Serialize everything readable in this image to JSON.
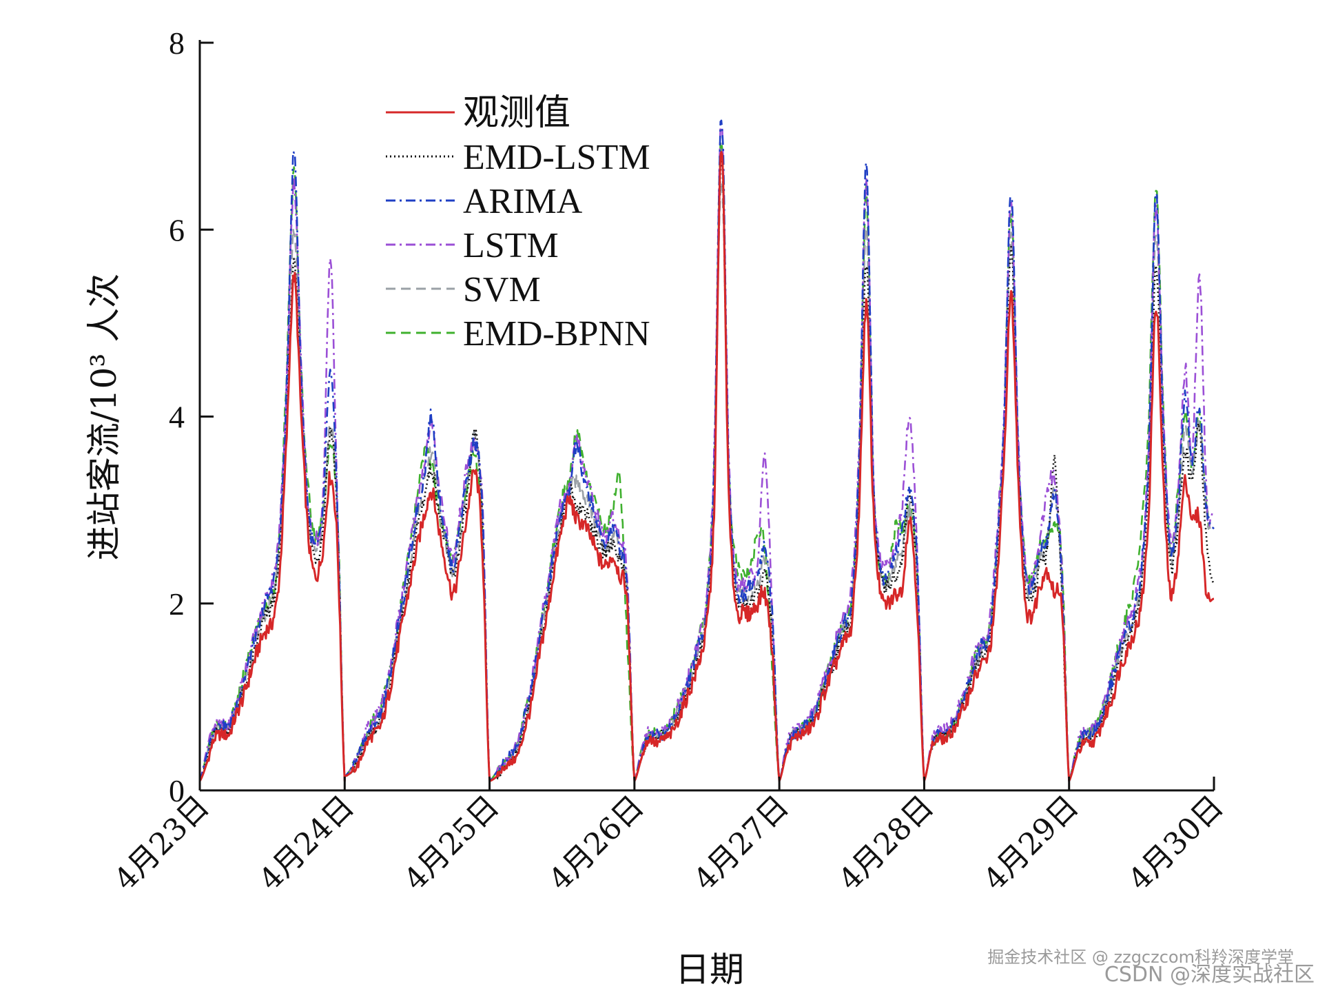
{
  "chart_data": {
    "type": "line",
    "xlabel": "日期",
    "ylabel": "进站客流/10³ 人次",
    "ylim": [
      0,
      8
    ],
    "yticks": [
      "0",
      "2",
      "4",
      "6",
      "8"
    ],
    "xlim": [
      0,
      7
    ],
    "categories": [
      "4月23日",
      "4月24日",
      "4月25日",
      "4月26日",
      "4月27日",
      "4月28日",
      "4月29日",
      "4月30日"
    ],
    "legend_position": "top-left",
    "grid": false,
    "series": [
      {
        "name": "观测值",
        "color": "#d62728",
        "dash": "solid",
        "day_profiles": [
          [
            0.1,
            0.3,
            0.55,
            0.6,
            0.6,
            0.8,
            1.0,
            1.25,
            1.5,
            1.7,
            1.8,
            2.3,
            3.8,
            5.5,
            4.0,
            2.7,
            2.3,
            2.6,
            3.35,
            2.6,
            0.1
          ],
          [
            0.15,
            0.2,
            0.3,
            0.5,
            0.6,
            0.7,
            1.0,
            1.4,
            1.8,
            2.2,
            2.6,
            2.95,
            3.2,
            2.8,
            2.4,
            2.1,
            2.5,
            3.0,
            3.4,
            2.6,
            0.1
          ],
          [
            0.1,
            0.15,
            0.25,
            0.3,
            0.4,
            0.7,
            1.0,
            1.5,
            1.9,
            2.4,
            2.8,
            3.1,
            2.9,
            2.85,
            2.7,
            2.5,
            2.4,
            2.5,
            2.3,
            2.0,
            0.1
          ],
          [
            0.1,
            0.35,
            0.55,
            0.5,
            0.55,
            0.6,
            0.75,
            0.95,
            1.15,
            1.4,
            1.8,
            3.0,
            6.9,
            3.2,
            2.0,
            1.9,
            1.9,
            2.0,
            2.1,
            1.5,
            0.1
          ],
          [
            0.1,
            0.4,
            0.55,
            0.6,
            0.65,
            0.75,
            1.0,
            1.2,
            1.4,
            1.6,
            1.8,
            3.0,
            5.2,
            3.0,
            2.1,
            2.0,
            2.1,
            2.2,
            2.9,
            2.0,
            0.1
          ],
          [
            0.1,
            0.45,
            0.55,
            0.55,
            0.65,
            0.8,
            1.0,
            1.2,
            1.35,
            1.5,
            2.2,
            3.5,
            5.3,
            3.3,
            2.0,
            1.9,
            2.2,
            2.35,
            2.1,
            2.0,
            0.1
          ],
          [
            0.1,
            0.35,
            0.5,
            0.5,
            0.6,
            0.8,
            1.0,
            1.3,
            1.5,
            1.7,
            2.0,
            3.0,
            5.2,
            3.3,
            2.1,
            2.5,
            3.3,
            2.9,
            2.9,
            2.1,
            2.05
          ]
        ]
      },
      {
        "name": "EMD-LSTM",
        "color": "#111111",
        "dash": "dotted",
        "day_profiles": [
          [
            0.1,
            0.35,
            0.6,
            0.65,
            0.65,
            0.85,
            1.05,
            1.3,
            1.6,
            1.85,
            2.0,
            2.5,
            4.0,
            5.6,
            4.2,
            2.9,
            2.5,
            2.8,
            3.85,
            2.9,
            0.1
          ],
          [
            0.15,
            0.2,
            0.35,
            0.55,
            0.65,
            0.75,
            1.05,
            1.5,
            1.9,
            2.3,
            2.8,
            3.15,
            3.45,
            3.0,
            2.6,
            2.3,
            2.7,
            3.2,
            3.8,
            2.9,
            0.1
          ],
          [
            0.1,
            0.15,
            0.25,
            0.35,
            0.45,
            0.75,
            1.1,
            1.6,
            2.0,
            2.5,
            2.9,
            3.2,
            3.05,
            3.0,
            2.85,
            2.65,
            2.55,
            2.65,
            2.45,
            2.1,
            0.1
          ],
          [
            0.1,
            0.35,
            0.6,
            0.55,
            0.6,
            0.65,
            0.8,
            1.0,
            1.2,
            1.5,
            1.9,
            3.2,
            6.8,
            3.4,
            2.1,
            2.0,
            2.0,
            2.1,
            2.3,
            1.7,
            0.1
          ],
          [
            0.1,
            0.45,
            0.6,
            0.6,
            0.7,
            0.8,
            1.05,
            1.25,
            1.5,
            1.7,
            1.9,
            3.2,
            5.6,
            3.2,
            2.3,
            2.2,
            2.3,
            2.5,
            3.2,
            2.3,
            0.1
          ],
          [
            0.1,
            0.45,
            0.6,
            0.6,
            0.7,
            0.85,
            1.05,
            1.3,
            1.45,
            1.6,
            2.4,
            3.7,
            5.8,
            3.5,
            2.2,
            2.1,
            2.4,
            2.6,
            3.5,
            2.1,
            0.1
          ],
          [
            0.1,
            0.4,
            0.55,
            0.55,
            0.65,
            0.85,
            1.1,
            1.4,
            1.6,
            1.8,
            2.2,
            3.3,
            5.6,
            3.6,
            2.4,
            2.8,
            3.6,
            3.3,
            3.9,
            2.6,
            2.2
          ]
        ]
      },
      {
        "name": "ARIMA",
        "color": "#1f3fc4",
        "dash": "dashdot",
        "day_profiles": [
          [
            0.1,
            0.4,
            0.65,
            0.7,
            0.7,
            0.9,
            1.15,
            1.45,
            1.7,
            2.0,
            2.2,
            2.7,
            4.3,
            6.85,
            4.4,
            3.0,
            2.6,
            3.0,
            4.45,
            3.0,
            0.1
          ],
          [
            0.15,
            0.25,
            0.4,
            0.6,
            0.7,
            0.85,
            1.15,
            1.6,
            2.0,
            2.5,
            3.0,
            3.4,
            4.0,
            3.2,
            2.7,
            2.4,
            2.9,
            3.4,
            3.7,
            3.0,
            0.1
          ],
          [
            0.1,
            0.2,
            0.3,
            0.4,
            0.5,
            0.85,
            1.2,
            1.7,
            2.1,
            2.6,
            3.0,
            3.2,
            3.7,
            3.3,
            3.1,
            2.8,
            2.65,
            2.8,
            2.6,
            2.2,
            0.1
          ],
          [
            0.1,
            0.4,
            0.6,
            0.6,
            0.6,
            0.7,
            0.85,
            1.05,
            1.3,
            1.6,
            2.0,
            3.4,
            7.25,
            3.5,
            2.2,
            2.1,
            2.2,
            2.3,
            2.6,
            1.9,
            0.1
          ],
          [
            0.1,
            0.45,
            0.6,
            0.65,
            0.75,
            0.85,
            1.1,
            1.3,
            1.6,
            1.8,
            2.1,
            3.5,
            6.7,
            3.3,
            2.4,
            2.3,
            2.5,
            2.8,
            3.2,
            2.5,
            0.1
          ],
          [
            0.1,
            0.45,
            0.6,
            0.6,
            0.7,
            0.9,
            1.1,
            1.4,
            1.55,
            1.7,
            2.6,
            3.9,
            6.4,
            3.6,
            2.3,
            2.2,
            2.6,
            2.7,
            3.2,
            2.3,
            0.1
          ],
          [
            0.1,
            0.4,
            0.6,
            0.6,
            0.7,
            0.9,
            1.2,
            1.5,
            1.7,
            1.9,
            2.4,
            3.6,
            6.4,
            3.9,
            2.6,
            3.0,
            4.2,
            3.5,
            4.1,
            3.0,
            2.8
          ]
        ]
      },
      {
        "name": "LSTM",
        "color": "#9b4fd6",
        "dash": "dashdot",
        "day_profiles": [
          [
            0.1,
            0.45,
            0.7,
            0.7,
            0.7,
            0.9,
            1.2,
            1.5,
            1.75,
            2.05,
            2.25,
            2.8,
            4.4,
            6.5,
            4.5,
            3.0,
            2.7,
            3.1,
            5.7,
            3.0,
            0.1
          ],
          [
            0.15,
            0.25,
            0.4,
            0.65,
            0.75,
            0.9,
            1.2,
            1.65,
            2.1,
            2.6,
            3.1,
            3.5,
            3.9,
            3.3,
            2.8,
            2.5,
            3.0,
            3.5,
            3.7,
            3.1,
            0.1
          ],
          [
            0.1,
            0.2,
            0.3,
            0.4,
            0.55,
            0.9,
            1.25,
            1.75,
            2.2,
            2.7,
            3.1,
            3.2,
            3.75,
            3.4,
            3.2,
            2.9,
            2.7,
            2.9,
            2.7,
            2.3,
            0.1
          ],
          [
            0.1,
            0.45,
            0.65,
            0.6,
            0.65,
            0.75,
            0.9,
            1.1,
            1.35,
            1.65,
            2.1,
            3.6,
            7.2,
            3.6,
            2.3,
            2.2,
            2.3,
            2.4,
            3.6,
            2.0,
            0.1
          ],
          [
            0.1,
            0.5,
            0.65,
            0.7,
            0.8,
            0.9,
            1.15,
            1.35,
            1.65,
            1.9,
            2.2,
            3.7,
            6.5,
            3.4,
            2.5,
            2.4,
            2.6,
            3.1,
            4.0,
            2.6,
            0.1
          ],
          [
            0.1,
            0.5,
            0.65,
            0.65,
            0.75,
            0.95,
            1.15,
            1.45,
            1.6,
            1.8,
            2.7,
            4.0,
            6.3,
            3.7,
            2.4,
            2.3,
            2.7,
            3.2,
            3.3,
            2.4,
            0.1
          ],
          [
            0.1,
            0.45,
            0.65,
            0.65,
            0.75,
            0.95,
            1.25,
            1.55,
            1.8,
            2.0,
            2.5,
            3.7,
            6.3,
            4.0,
            2.7,
            3.1,
            4.5,
            3.6,
            5.5,
            3.1,
            3.0
          ]
        ]
      },
      {
        "name": "SVM",
        "color": "#9aa0a6",
        "dash": "dashed",
        "day_profiles": [
          [
            0.1,
            0.35,
            0.6,
            0.65,
            0.65,
            0.85,
            1.1,
            1.35,
            1.6,
            1.9,
            2.05,
            2.6,
            4.1,
            6.0,
            4.3,
            2.9,
            2.6,
            2.9,
            3.9,
            2.9,
            0.1
          ],
          [
            0.15,
            0.2,
            0.35,
            0.55,
            0.65,
            0.8,
            1.1,
            1.5,
            1.95,
            2.4,
            2.9,
            3.3,
            3.6,
            3.1,
            2.6,
            2.35,
            2.8,
            3.3,
            3.75,
            2.9,
            0.1
          ],
          [
            0.1,
            0.15,
            0.25,
            0.35,
            0.5,
            0.8,
            1.15,
            1.65,
            2.05,
            2.55,
            2.95,
            3.2,
            3.3,
            3.15,
            3.0,
            2.75,
            2.6,
            2.7,
            2.55,
            2.15,
            0.1
          ],
          [
            0.1,
            0.4,
            0.6,
            0.55,
            0.6,
            0.7,
            0.85,
            1.05,
            1.25,
            1.55,
            1.95,
            3.3,
            6.6,
            3.45,
            2.2,
            2.1,
            2.1,
            2.2,
            2.5,
            1.8,
            0.1
          ],
          [
            0.1,
            0.45,
            0.6,
            0.6,
            0.7,
            0.85,
            1.1,
            1.3,
            1.55,
            1.75,
            2.0,
            3.3,
            6.0,
            3.25,
            2.35,
            2.25,
            2.4,
            2.6,
            3.0,
            2.3,
            0.1
          ],
          [
            0.1,
            0.45,
            0.6,
            0.6,
            0.7,
            0.9,
            1.1,
            1.35,
            1.5,
            1.65,
            2.5,
            3.8,
            5.9,
            3.55,
            2.25,
            2.15,
            2.5,
            2.65,
            3.2,
            2.25,
            0.1
          ],
          [
            0.1,
            0.4,
            0.6,
            0.6,
            0.7,
            0.9,
            1.15,
            1.45,
            1.65,
            1.85,
            2.3,
            3.5,
            6.0,
            3.8,
            2.5,
            2.9,
            3.9,
            3.4,
            3.9,
            2.9,
            2.8
          ]
        ]
      },
      {
        "name": "EMD-BPNN",
        "color": "#3fb02e",
        "dash": "dashed",
        "day_profiles": [
          [
            0.1,
            0.4,
            0.65,
            0.7,
            0.7,
            0.9,
            1.2,
            1.5,
            1.75,
            1.95,
            2.1,
            2.7,
            4.5,
            6.6,
            4.5,
            3.2,
            2.7,
            3.0,
            3.65,
            3.0,
            0.1
          ],
          [
            0.15,
            0.25,
            0.4,
            0.6,
            0.75,
            0.9,
            1.2,
            1.6,
            2.1,
            2.6,
            3.1,
            3.6,
            3.5,
            3.0,
            2.7,
            2.5,
            2.9,
            3.3,
            3.6,
            2.7,
            0.1
          ],
          [
            0.1,
            0.2,
            0.3,
            0.4,
            0.55,
            0.85,
            1.2,
            1.7,
            2.15,
            2.7,
            3.1,
            3.3,
            3.8,
            3.5,
            3.2,
            3.0,
            2.8,
            3.0,
            3.3,
            1.6,
            0.1
          ],
          [
            0.1,
            0.45,
            0.6,
            0.6,
            0.6,
            0.75,
            0.9,
            1.1,
            1.35,
            1.65,
            2.05,
            3.5,
            7.0,
            3.5,
            2.5,
            2.3,
            2.4,
            2.7,
            2.6,
            1.3,
            0.1
          ],
          [
            0.1,
            0.45,
            0.6,
            0.65,
            0.75,
            0.85,
            1.1,
            1.35,
            1.6,
            1.8,
            2.1,
            3.4,
            6.4,
            3.2,
            2.3,
            2.3,
            2.8,
            2.8,
            3.0,
            2.4,
            0.1
          ],
          [
            0.1,
            0.45,
            0.6,
            0.6,
            0.7,
            0.9,
            1.1,
            1.4,
            1.55,
            1.7,
            2.6,
            3.9,
            6.2,
            3.6,
            2.4,
            2.3,
            2.6,
            2.7,
            2.8,
            2.5,
            0.1
          ],
          [
            0.1,
            0.45,
            0.6,
            0.65,
            0.75,
            0.95,
            1.25,
            1.6,
            1.9,
            2.2,
            2.8,
            4.0,
            6.4,
            4.1,
            2.6,
            3.2,
            4.1,
            3.5,
            4.0,
            3.0,
            2.9
          ]
        ]
      }
    ]
  },
  "watermark": {
    "line1": "掘金技术社区 @ zzgczcom科羚深度学堂",
    "line2": "CSDN @深度实战社区"
  }
}
